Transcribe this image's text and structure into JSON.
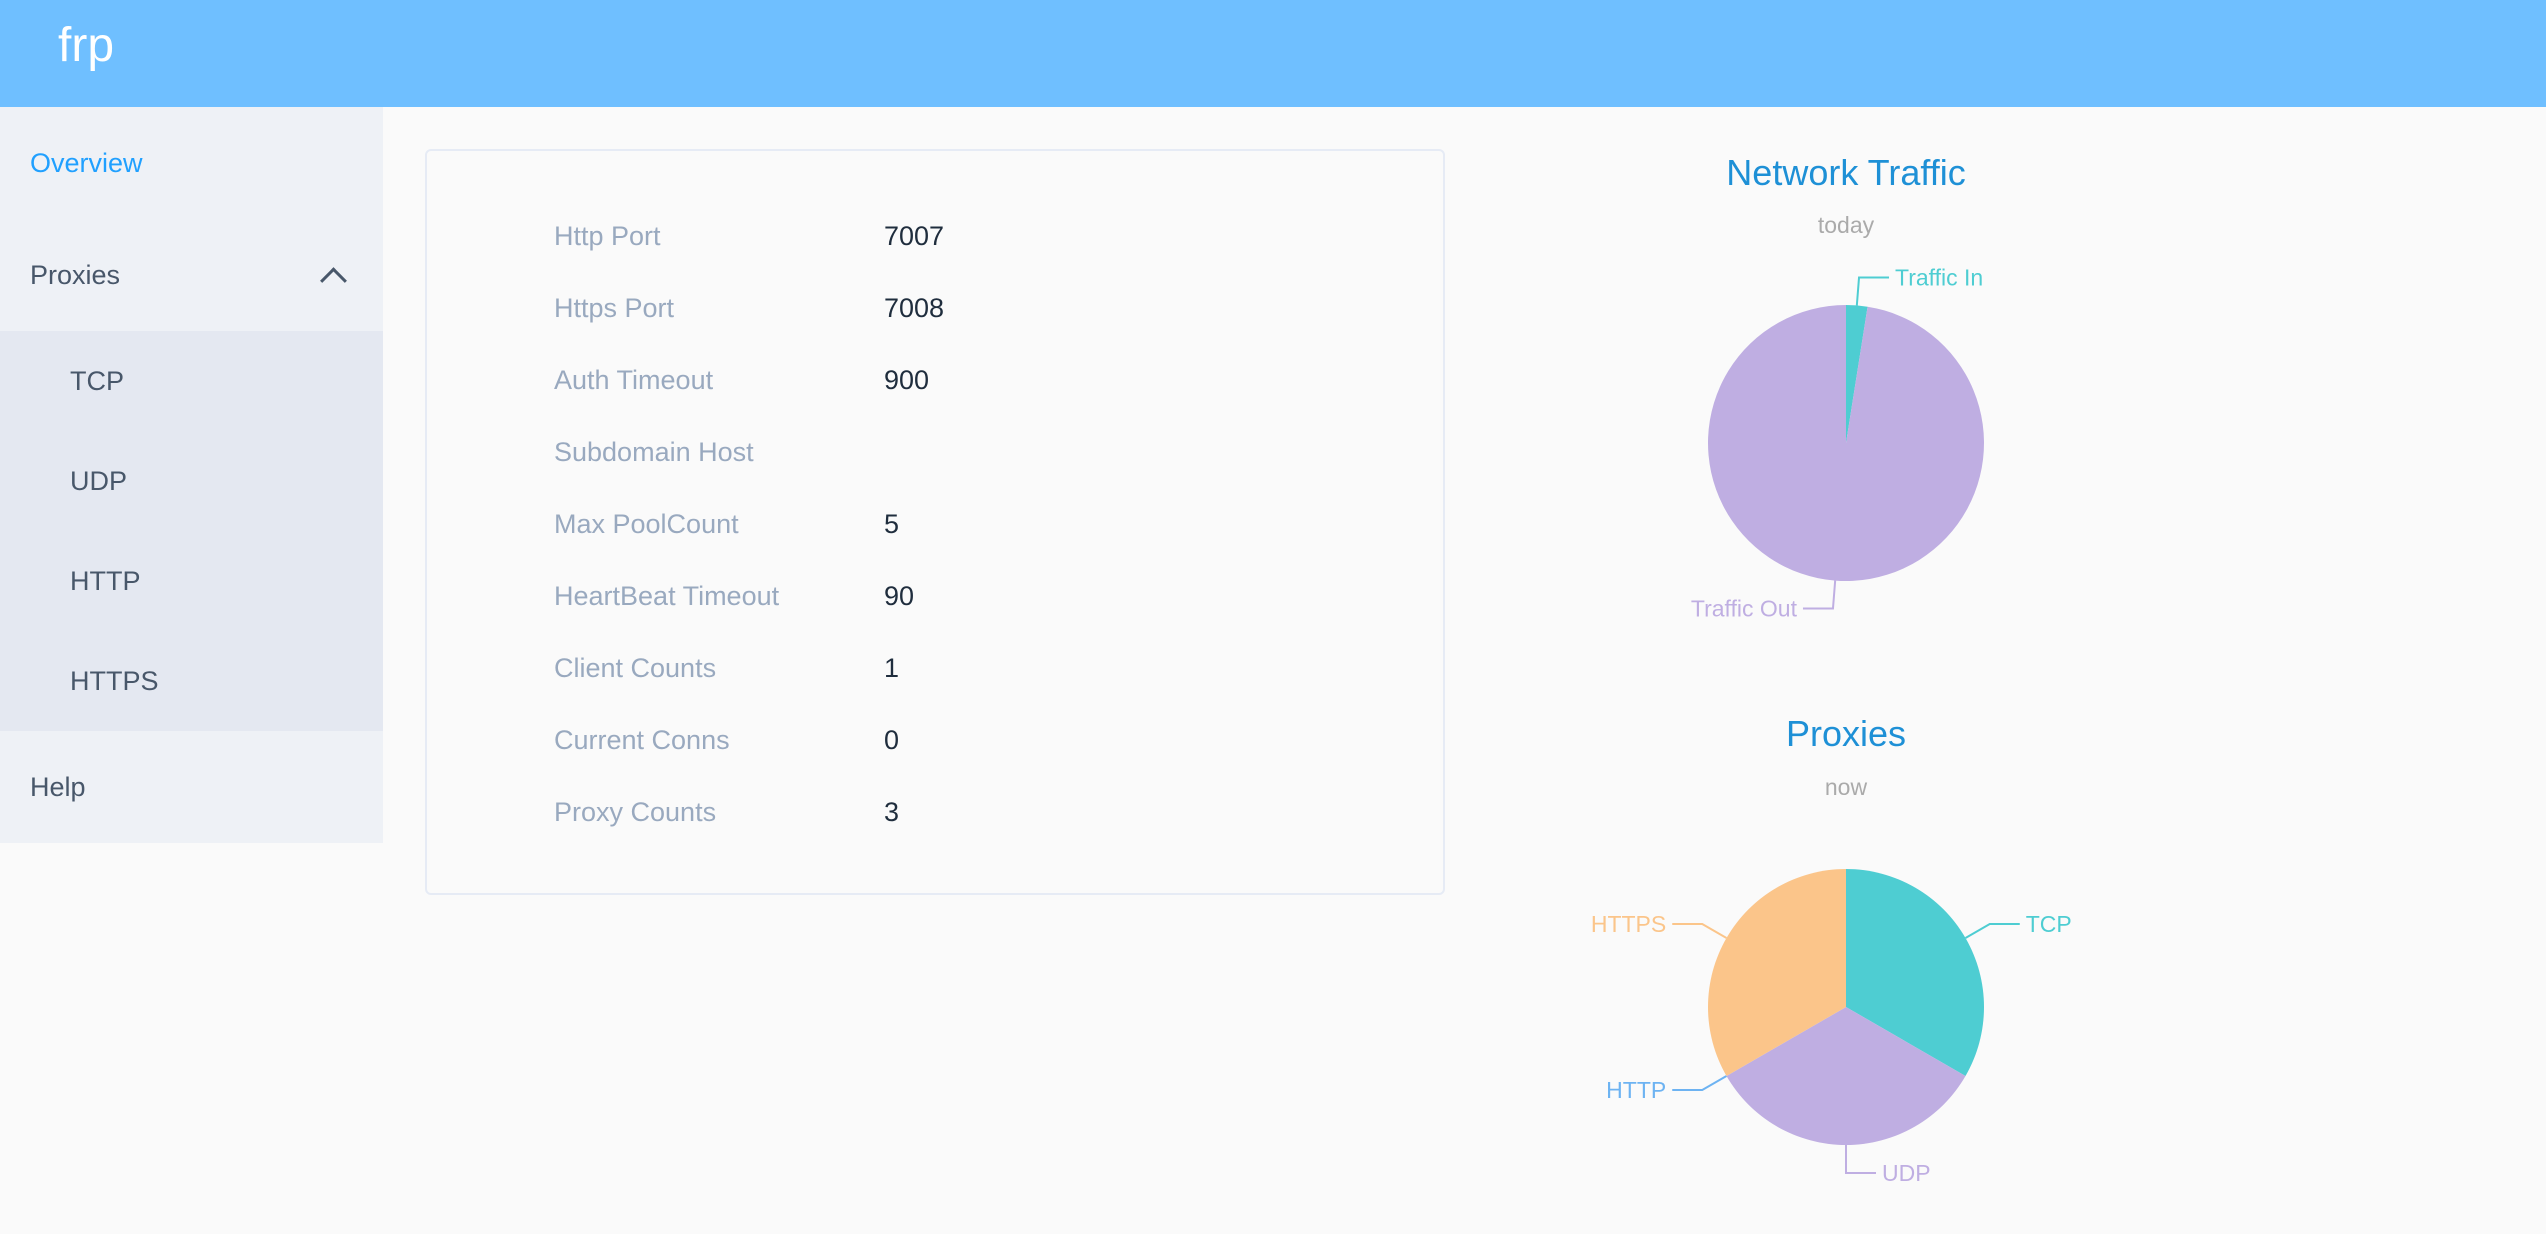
{
  "header": {
    "logo": "frp",
    "color": "#6fbfff"
  },
  "sidebar": {
    "overview": "Overview",
    "proxies": "Proxies",
    "sub_items": [
      "TCP",
      "UDP",
      "HTTP",
      "HTTPS"
    ],
    "help": "Help"
  },
  "info": [
    {
      "label": "Http Port",
      "value": "7007"
    },
    {
      "label": "Https Port",
      "value": "7008"
    },
    {
      "label": "Auth Timeout",
      "value": "900"
    },
    {
      "label": "Subdomain Host",
      "value": ""
    },
    {
      "label": "Max PoolCount",
      "value": "5"
    },
    {
      "label": "HeartBeat Timeout",
      "value": "90"
    },
    {
      "label": "Client Counts",
      "value": "1"
    },
    {
      "label": "Current Conns",
      "value": "0"
    },
    {
      "label": "Proxy Counts",
      "value": "3"
    }
  ],
  "chart_data": [
    {
      "type": "pie",
      "title": "Network Traffic",
      "subtitle": "today",
      "labels": [
        "Traffic In",
        "Traffic Out"
      ],
      "values": [
        2.5,
        97.5
      ],
      "colors": [
        "#4ecdd2",
        "#bfaee2"
      ]
    },
    {
      "type": "pie",
      "title": "Proxies",
      "subtitle": "now",
      "labels": [
        "TCP",
        "UDP",
        "HTTP",
        "HTTPS"
      ],
      "values": [
        1,
        1,
        0,
        1
      ],
      "colors": [
        "#4ecdd2",
        "#bfaee2",
        "#6db3f2",
        "#fbc58a"
      ]
    }
  ]
}
